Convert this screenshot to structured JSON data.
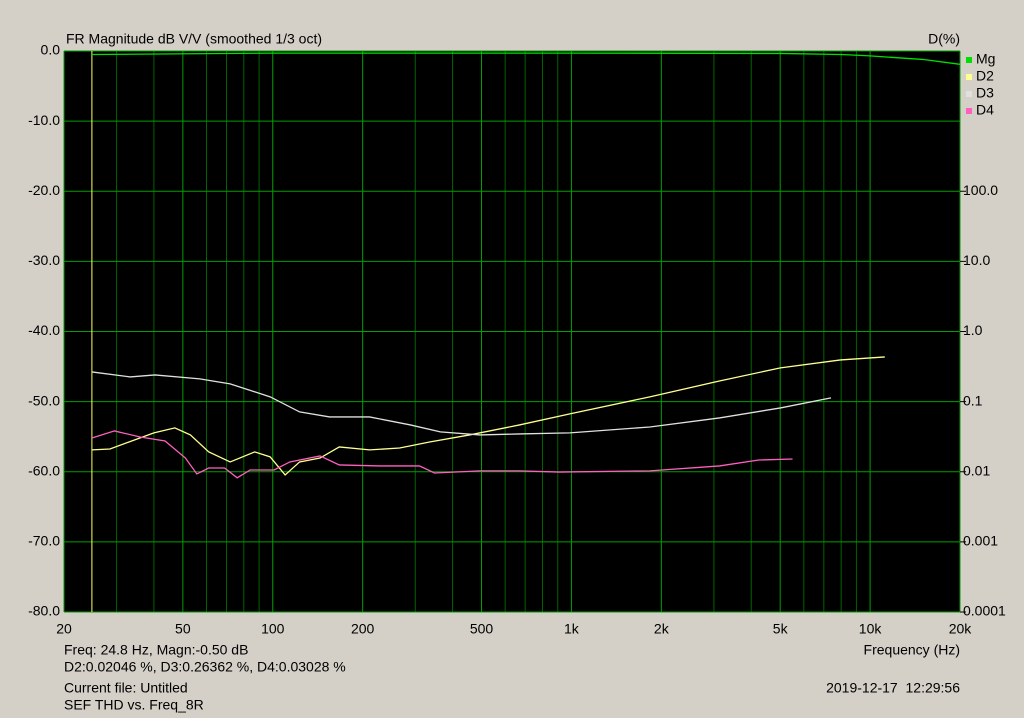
{
  "chart_data": {
    "type": "line",
    "title": "FR Magnitude dB V/V (smoothed 1/3 oct)",
    "y2_title": "D(%)",
    "x_label": "Frequency (Hz)",
    "xscale": "log",
    "xlim": [
      20,
      20000
    ],
    "xticks": [
      20,
      50,
      100,
      200,
      500,
      {
        "value": 1000,
        "label": "1k"
      },
      {
        "value": 2000,
        "label": "2k"
      },
      {
        "value": 5000,
        "label": "5k"
      },
      {
        "value": 10000,
        "label": "10k"
      },
      {
        "value": 20000,
        "label": "20k"
      }
    ],
    "xgrid_minor": [
      30,
      40,
      60,
      70,
      80,
      90,
      300,
      400,
      600,
      700,
      800,
      900,
      3000,
      4000,
      6000,
      7000,
      8000,
      9000
    ],
    "ylim": [
      -80,
      0
    ],
    "yticks": [
      {
        "value": 0,
        "label": "0.0"
      },
      {
        "value": -10,
        "label": "-10.0"
      },
      {
        "value": -20,
        "label": "-20.0"
      },
      {
        "value": -30,
        "label": "-30.0"
      },
      {
        "value": -40,
        "label": "-40.0"
      },
      {
        "value": -50,
        "label": "-50.0"
      },
      {
        "value": -60,
        "label": "-60.0"
      },
      {
        "value": -70,
        "label": "-70.0"
      },
      {
        "value": -80,
        "label": "-80.0"
      }
    ],
    "y2scale": "log",
    "y2lim": [
      0.0001,
      10000
    ],
    "y2ticks": [
      {
        "value": 100,
        "label": "100.0"
      },
      {
        "value": 10,
        "label": "10.0"
      },
      {
        "value": 1,
        "label": "1.0"
      },
      0.1,
      0.01,
      0.001,
      0.0001
    ],
    "grid": true,
    "legend": "right",
    "cursor_x": 24.8,
    "series": [
      {
        "name": "Mg",
        "color": "#00e000",
        "axis": "y",
        "x": [
          24.8,
          100,
          1000,
          5000,
          8000,
          10000,
          15000,
          20000
        ],
        "values": [
          -0.5,
          -0.3,
          -0.3,
          -0.35,
          -0.5,
          -0.7,
          -1.2,
          -1.9
        ]
      },
      {
        "name": "D2",
        "color": "#ffff90",
        "axis": "y2",
        "x": [
          24.8,
          28.5,
          33,
          40,
          47,
          53,
          61,
          72,
          87,
          98,
          110,
          123,
          144,
          167,
          211,
          266,
          335,
          456,
          670,
          988,
          1830,
          3130,
          5010,
          7960,
          11200
        ],
        "values": [
          0.0205,
          0.0211,
          0.0266,
          0.0358,
          0.0422,
          0.0335,
          0.0192,
          0.0138,
          0.0192,
          0.0163,
          0.009,
          0.0138,
          0.0157,
          0.0226,
          0.0205,
          0.0218,
          0.0266,
          0.0335,
          0.0465,
          0.0668,
          0.117,
          0.197,
          0.303,
          0.393,
          0.434
        ]
      },
      {
        "name": "D3",
        "color": "#e0e0e0",
        "axis": "y2",
        "x": [
          24.8,
          33.3,
          40.3,
          57,
          72,
          98,
          123,
          155,
          211,
          289,
          364,
          494,
          670,
          988,
          1830,
          3130,
          5010,
          7400
        ],
        "values": [
          0.265,
          0.225,
          0.24,
          0.211,
          0.179,
          0.117,
          0.0713,
          0.0605,
          0.0605,
          0.0465,
          0.037,
          0.0335,
          0.0346,
          0.0358,
          0.0435,
          0.0585,
          0.0813,
          0.113
        ]
      },
      {
        "name": "D4",
        "color": "#ff60c0",
        "axis": "y2",
        "x": [
          24.8,
          29.5,
          36,
          43.6,
          51,
          55.7,
          61,
          69,
          76,
          84,
          101,
          114,
          144,
          167,
          228,
          310,
          348,
          494,
          670,
          910,
          1830,
          3130,
          4240,
          5500
        ],
        "values": [
          0.0303,
          0.0382,
          0.0313,
          0.0275,
          0.0157,
          0.0093,
          0.0113,
          0.0113,
          0.0082,
          0.0106,
          0.0106,
          0.0138,
          0.0168,
          0.0125,
          0.0121,
          0.0121,
          0.0096,
          0.0103,
          0.0103,
          0.0099,
          0.0103,
          0.0121,
          0.0147,
          0.0152
        ]
      }
    ]
  },
  "readout": [
    "Freq: 24.8 Hz, Magn:-0.50 dB",
    "D2:0.02046 %, D3:0.26362 %, D4:0.03028 %"
  ],
  "footer": {
    "file": "Current file: Untitled",
    "name": "SEF THD vs. Freq_8R",
    "timestamp": "2019-12-17  12:29:56"
  }
}
